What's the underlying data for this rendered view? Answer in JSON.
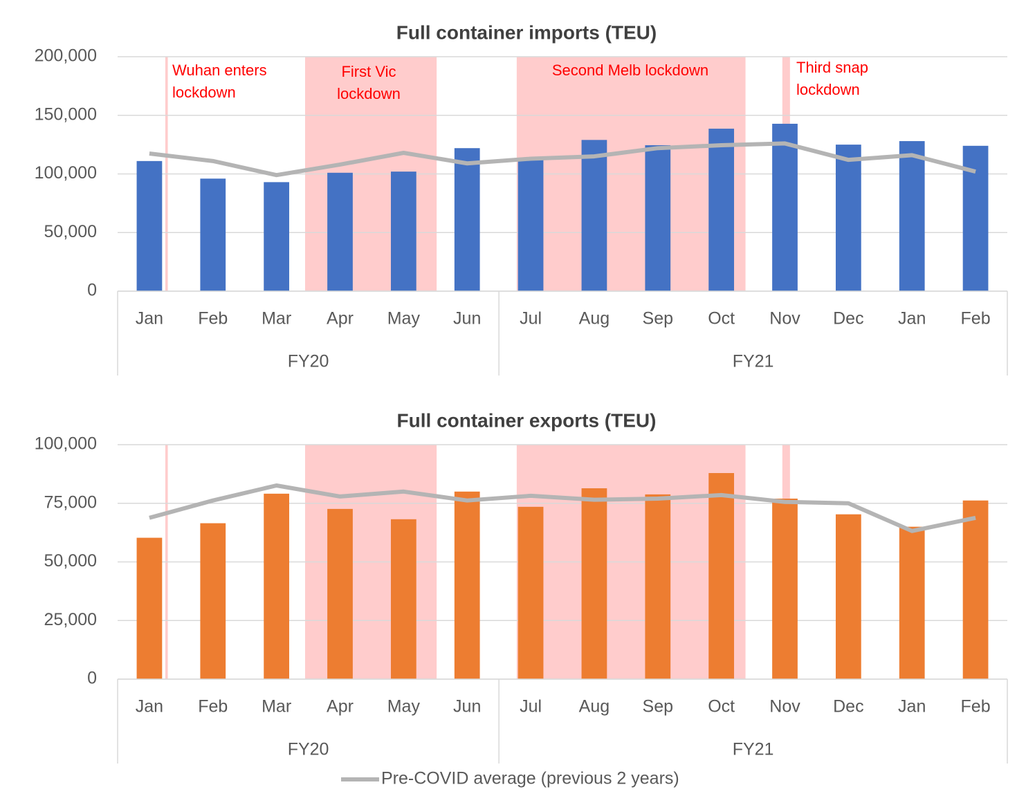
{
  "chart_data": [
    {
      "type": "bar_line",
      "title": "Full container imports (TEU)",
      "categories": [
        "Jan",
        "Feb",
        "Mar",
        "Apr",
        "May",
        "Jun",
        "Jul",
        "Aug",
        "Sep",
        "Oct",
        "Nov",
        "Dec",
        "Jan",
        "Feb"
      ],
      "groups": [
        "FY20",
        "FY21"
      ],
      "series": [
        {
          "type": "bar",
          "color": "#4472c4",
          "values": [
            111000,
            96000,
            93000,
            101000,
            102000,
            122000,
            113000,
            129000,
            124500,
            138600,
            142800,
            125000,
            128000,
            124000
          ]
        },
        {
          "type": "line",
          "color": "#b4b4b4",
          "values": [
            117400,
            111000,
            99000,
            108000,
            118000,
            109000,
            113000,
            115000,
            122000,
            124500,
            126000,
            112000,
            116000,
            102000
          ]
        }
      ],
      "ylim": [
        0,
        200000
      ],
      "yticks": [
        {
          "value": 0,
          "label": "0"
        },
        {
          "value": 50000,
          "label": "50,000"
        },
        {
          "value": 100000,
          "label": "100,000"
        },
        {
          "value": 150000,
          "label": "150,000"
        },
        {
          "value": 200000,
          "label": "200,000"
        }
      ],
      "grid": true,
      "annotations": [
        {
          "lines": [
            "Wuhan enters",
            "lockdown"
          ],
          "color": "#ff0000"
        },
        {
          "lines": [
            "First Vic",
            "lockdown"
          ],
          "color": "#ff0000"
        },
        {
          "lines": [
            "Second Melb lockdown"
          ],
          "color": "#ff0000"
        },
        {
          "lines": [
            "Third snap",
            "lockdown"
          ],
          "color": "#ff0000"
        }
      ]
    },
    {
      "type": "bar_line",
      "title": "Full container exports (TEU)",
      "categories": [
        "Jan",
        "Feb",
        "Mar",
        "Apr",
        "May",
        "Jun",
        "Jul",
        "Aug",
        "Sep",
        "Oct",
        "Nov",
        "Dec",
        "Jan",
        "Feb"
      ],
      "groups": [
        "FY20",
        "FY21"
      ],
      "series": [
        {
          "type": "bar",
          "color": "#ed7d31",
          "values": [
            60300,
            66500,
            79100,
            72600,
            68200,
            80000,
            73500,
            81400,
            78800,
            87900,
            77000,
            70300,
            65000,
            76200
          ]
        },
        {
          "type": "line",
          "name": "Pre-COVID average (previous 2 years)",
          "color": "#b4b4b4",
          "values": [
            68800,
            76200,
            82600,
            77900,
            80000,
            76200,
            78200,
            76500,
            77000,
            78500,
            75600,
            75000,
            63200,
            68800
          ]
        }
      ],
      "ylim": [
        0,
        100000
      ],
      "yticks": [
        {
          "value": 0,
          "label": "0"
        },
        {
          "value": 25000,
          "label": "25,000"
        },
        {
          "value": 50000,
          "label": "50,000"
        },
        {
          "value": 75000,
          "label": "75,000"
        },
        {
          "value": 100000,
          "label": "100,000"
        }
      ],
      "grid": true
    }
  ]
}
